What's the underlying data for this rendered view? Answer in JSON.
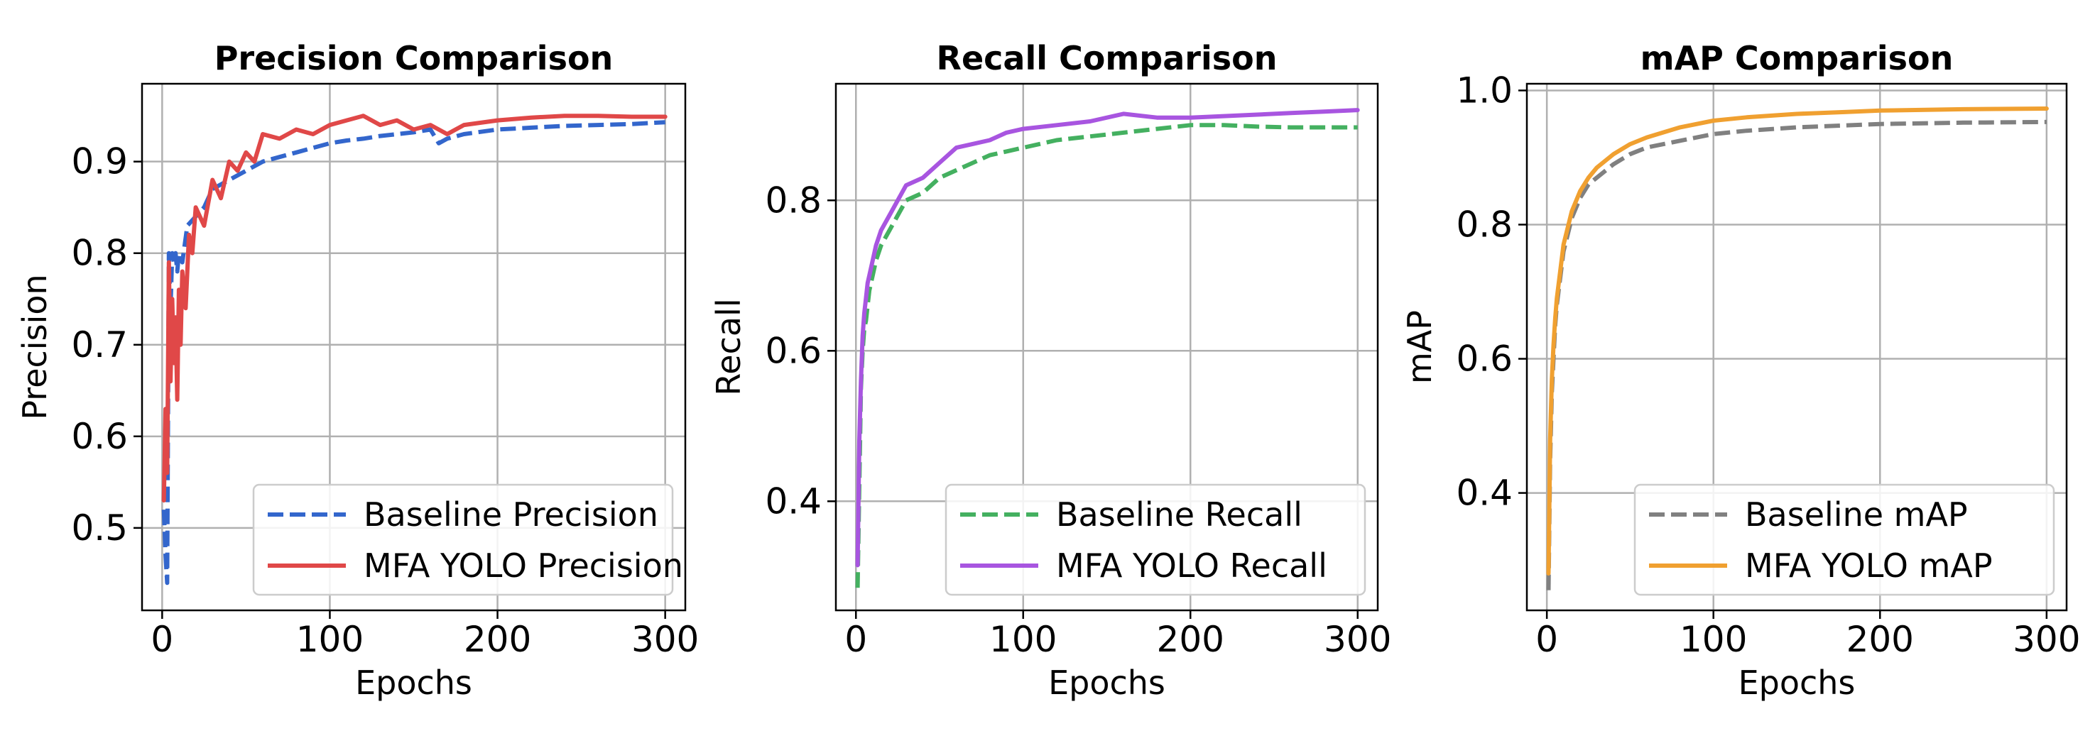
{
  "chart_data": [
    {
      "type": "line",
      "title": "Precision Comparison",
      "xlabel": "Epochs",
      "ylabel": "Precision",
      "xlim": [
        -12,
        312
      ],
      "ylim": [
        0.41,
        0.985
      ],
      "xticks": [
        0,
        100,
        200,
        300
      ],
      "yticks": [
        0.5,
        0.6,
        0.7,
        0.8,
        0.9
      ],
      "ytick_labels": [
        "0.5",
        "0.6",
        "0.7",
        "0.8",
        "0.9"
      ],
      "grid": true,
      "legend": "lower-right",
      "series": [
        {
          "name": "Baseline Precision",
          "color": "#3366cc",
          "style": "dashed",
          "x": [
            1,
            2,
            3,
            4,
            5,
            6,
            7,
            8,
            9,
            10,
            12,
            15,
            20,
            25,
            30,
            40,
            50,
            60,
            70,
            80,
            90,
            100,
            110,
            120,
            130,
            140,
            150,
            160,
            165,
            170,
            180,
            200,
            220,
            240,
            260,
            280,
            300
          ],
          "y": [
            0.52,
            0.47,
            0.44,
            0.8,
            0.74,
            0.8,
            0.79,
            0.8,
            0.78,
            0.8,
            0.79,
            0.83,
            0.84,
            0.85,
            0.87,
            0.88,
            0.89,
            0.9,
            0.905,
            0.91,
            0.915,
            0.92,
            0.923,
            0.925,
            0.928,
            0.93,
            0.932,
            0.935,
            0.92,
            0.925,
            0.93,
            0.935,
            0.937,
            0.939,
            0.94,
            0.941,
            0.943
          ]
        },
        {
          "name": "MFA YOLO Precision",
          "color": "#e04848",
          "style": "solid",
          "x": [
            1,
            2,
            3,
            4,
            5,
            6,
            7,
            8,
            9,
            10,
            11,
            12,
            14,
            16,
            18,
            20,
            25,
            30,
            35,
            40,
            45,
            50,
            55,
            60,
            70,
            80,
            90,
            100,
            110,
            120,
            130,
            140,
            150,
            160,
            170,
            180,
            200,
            220,
            240,
            260,
            280,
            300
          ],
          "y": [
            0.53,
            0.63,
            0.56,
            0.79,
            0.66,
            0.75,
            0.68,
            0.73,
            0.64,
            0.76,
            0.7,
            0.78,
            0.74,
            0.82,
            0.8,
            0.85,
            0.83,
            0.88,
            0.86,
            0.9,
            0.89,
            0.91,
            0.9,
            0.93,
            0.925,
            0.935,
            0.93,
            0.94,
            0.945,
            0.95,
            0.94,
            0.945,
            0.935,
            0.94,
            0.93,
            0.94,
            0.945,
            0.948,
            0.95,
            0.95,
            0.949,
            0.949
          ]
        }
      ]
    },
    {
      "type": "line",
      "title": "Recall Comparison",
      "xlabel": "Epochs",
      "ylabel": "Recall",
      "xlim": [
        -12,
        312
      ],
      "ylim": [
        0.255,
        0.955
      ],
      "xticks": [
        0,
        100,
        200,
        300
      ],
      "yticks": [
        0.4,
        0.6,
        0.8
      ],
      "ytick_labels": [
        "0.4",
        "0.6",
        "0.8"
      ],
      "grid": true,
      "legend": "lower-right",
      "series": [
        {
          "name": "Baseline Recall",
          "color": "#44b060",
          "style": "dashed",
          "x": [
            1,
            2,
            3,
            4,
            5,
            6,
            7,
            8,
            10,
            12,
            15,
            20,
            25,
            30,
            40,
            50,
            60,
            70,
            80,
            90,
            100,
            120,
            140,
            160,
            180,
            200,
            220,
            240,
            260,
            280,
            300
          ],
          "y": [
            0.285,
            0.42,
            0.55,
            0.6,
            0.63,
            0.64,
            0.66,
            0.68,
            0.7,
            0.72,
            0.74,
            0.76,
            0.78,
            0.8,
            0.81,
            0.83,
            0.84,
            0.85,
            0.86,
            0.865,
            0.87,
            0.88,
            0.885,
            0.89,
            0.895,
            0.9,
            0.9,
            0.898,
            0.897,
            0.897,
            0.897
          ]
        },
        {
          "name": "MFA YOLO Recall",
          "color": "#a855e0",
          "style": "solid",
          "x": [
            1,
            2,
            3,
            4,
            5,
            6,
            7,
            8,
            10,
            12,
            15,
            20,
            25,
            30,
            40,
            50,
            60,
            70,
            80,
            90,
            100,
            120,
            140,
            160,
            180,
            200,
            220,
            240,
            260,
            280,
            300
          ],
          "y": [
            0.315,
            0.48,
            0.56,
            0.62,
            0.65,
            0.67,
            0.69,
            0.7,
            0.72,
            0.74,
            0.76,
            0.78,
            0.8,
            0.82,
            0.83,
            0.85,
            0.87,
            0.875,
            0.88,
            0.89,
            0.895,
            0.9,
            0.905,
            0.915,
            0.91,
            0.91,
            0.912,
            0.914,
            0.916,
            0.918,
            0.92
          ]
        }
      ]
    },
    {
      "type": "line",
      "title": "mAP Comparison",
      "xlabel": "Epochs",
      "ylabel": "mAP",
      "xlim": [
        -12,
        312
      ],
      "ylim": [
        0.225,
        1.01
      ],
      "xticks": [
        0,
        100,
        200,
        300
      ],
      "yticks": [
        0.4,
        0.6,
        0.8,
        1.0
      ],
      "ytick_labels": [
        "0.4",
        "0.6",
        "0.8",
        "1.0"
      ],
      "grid": true,
      "legend": "lower-right",
      "series": [
        {
          "name": "Baseline mAP",
          "color": "#808080",
          "style": "dashed",
          "x": [
            1,
            2,
            3,
            4,
            5,
            6,
            8,
            10,
            12,
            15,
            20,
            25,
            30,
            40,
            50,
            60,
            80,
            100,
            120,
            150,
            180,
            200,
            250,
            300
          ],
          "y": [
            0.255,
            0.45,
            0.55,
            0.6,
            0.65,
            0.68,
            0.72,
            0.76,
            0.78,
            0.81,
            0.84,
            0.86,
            0.87,
            0.89,
            0.905,
            0.915,
            0.925,
            0.935,
            0.94,
            0.945,
            0.948,
            0.95,
            0.952,
            0.953
          ]
        },
        {
          "name": "MFA YOLO mAP",
          "color": "#f0a030",
          "style": "solid",
          "x": [
            1,
            2,
            3,
            4,
            5,
            6,
            8,
            10,
            12,
            15,
            20,
            25,
            30,
            40,
            50,
            60,
            80,
            100,
            120,
            150,
            180,
            200,
            250,
            300
          ],
          "y": [
            0.28,
            0.48,
            0.57,
            0.62,
            0.66,
            0.69,
            0.73,
            0.77,
            0.79,
            0.82,
            0.85,
            0.87,
            0.885,
            0.905,
            0.92,
            0.93,
            0.945,
            0.955,
            0.96,
            0.965,
            0.968,
            0.97,
            0.972,
            0.973
          ]
        }
      ]
    }
  ]
}
